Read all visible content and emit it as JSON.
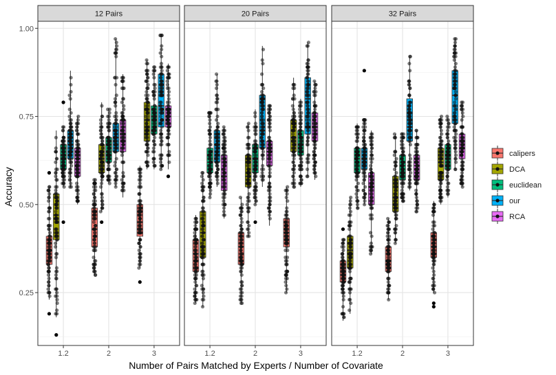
{
  "chart_data": {
    "type": "boxplot",
    "title": "",
    "xlabel": "Number of Pairs Matched by Experts / Number of Covariate",
    "ylabel": "Accuracy",
    "ylim": [
      0.1,
      1.02
    ],
    "yticks": [
      0.25,
      0.5,
      0.75,
      1.0
    ],
    "ytick_labels": [
      "0.25",
      "0.50",
      "0.75",
      "1.00"
    ],
    "categories": [
      "1.2",
      "2",
      "3"
    ],
    "grid": true,
    "legend_position": "right",
    "colors": {
      "calipers": "#F8766D",
      "DCA": "#A3A500",
      "euclidean": "#00BF7D",
      "our": "#00B0F6",
      "RCA": "#E76BF3"
    },
    "series_names": [
      "calipers",
      "DCA",
      "euclidean",
      "our",
      "RCA"
    ],
    "panels": [
      {
        "title": "12 Pairs",
        "groups": [
          {
            "category": "1.2",
            "boxes": [
              {
                "series": "calipers",
                "min": 0.23,
                "q1": 0.33,
                "median": 0.37,
                "q3": 0.41,
                "max": 0.55,
                "outliers": [
                  0.19,
                  0.59
                ]
              },
              {
                "series": "DCA",
                "min": 0.18,
                "q1": 0.4,
                "median": 0.47,
                "q3": 0.53,
                "max": 0.71,
                "outliers": [
                  0.13
                ]
              },
              {
                "series": "euclidean",
                "min": 0.55,
                "q1": 0.6,
                "median": 0.64,
                "q3": 0.67,
                "max": 0.72,
                "outliers": [
                  0.45,
                  0.79
                ]
              },
              {
                "series": "our",
                "min": 0.55,
                "q1": 0.63,
                "median": 0.67,
                "q3": 0.71,
                "max": 0.88,
                "outliers": []
              },
              {
                "series": "RCA",
                "min": 0.5,
                "q1": 0.58,
                "median": 0.63,
                "q3": 0.66,
                "max": 0.75,
                "outliers": []
              }
            ]
          },
          {
            "category": "2",
            "boxes": [
              {
                "series": "calipers",
                "min": 0.3,
                "q1": 0.38,
                "median": 0.43,
                "q3": 0.49,
                "max": 0.57,
                "outliers": []
              },
              {
                "series": "DCA",
                "min": 0.48,
                "q1": 0.59,
                "median": 0.63,
                "q3": 0.67,
                "max": 0.79,
                "outliers": [
                  0.45
                ]
              },
              {
                "series": "euclidean",
                "min": 0.56,
                "q1": 0.62,
                "median": 0.67,
                "q3": 0.69,
                "max": 0.77,
                "outliers": []
              },
              {
                "series": "our",
                "min": 0.55,
                "q1": 0.65,
                "median": 0.69,
                "q3": 0.73,
                "max": 0.97,
                "outliers": []
              },
              {
                "series": "RCA",
                "min": 0.52,
                "q1": 0.65,
                "median": 0.7,
                "q3": 0.74,
                "max": 0.87,
                "outliers": []
              }
            ]
          },
          {
            "category": "3",
            "boxes": [
              {
                "series": "calipers",
                "min": 0.32,
                "q1": 0.41,
                "median": 0.45,
                "q3": 0.5,
                "max": 0.61,
                "outliers": [
                  0.28
                ]
              },
              {
                "series": "DCA",
                "min": 0.6,
                "q1": 0.68,
                "median": 0.74,
                "q3": 0.79,
                "max": 0.91,
                "outliers": []
              },
              {
                "series": "euclidean",
                "min": 0.6,
                "q1": 0.7,
                "median": 0.75,
                "q3": 0.78,
                "max": 0.89,
                "outliers": []
              },
              {
                "series": "our",
                "min": 0.6,
                "q1": 0.72,
                "median": 0.78,
                "q3": 0.87,
                "max": 0.98,
                "outliers": []
              },
              {
                "series": "RCA",
                "min": 0.6,
                "q1": 0.72,
                "median": 0.75,
                "q3": 0.78,
                "max": 0.9,
                "outliers": [
                  0.58
                ]
              }
            ]
          }
        ]
      },
      {
        "title": "20 Pairs",
        "groups": [
          {
            "category": "1.2",
            "boxes": [
              {
                "series": "calipers",
                "min": 0.22,
                "q1": 0.31,
                "median": 0.36,
                "q3": 0.4,
                "max": 0.47,
                "outliers": []
              },
              {
                "series": "DCA",
                "min": 0.21,
                "q1": 0.35,
                "median": 0.42,
                "q3": 0.48,
                "max": 0.59,
                "outliers": []
              },
              {
                "series": "euclidean",
                "min": 0.52,
                "q1": 0.59,
                "median": 0.62,
                "q3": 0.66,
                "max": 0.76,
                "outliers": []
              },
              {
                "series": "our",
                "min": 0.55,
                "q1": 0.62,
                "median": 0.67,
                "q3": 0.71,
                "max": 0.87,
                "outliers": []
              },
              {
                "series": "RCA",
                "min": 0.46,
                "q1": 0.54,
                "median": 0.58,
                "q3": 0.64,
                "max": 0.72,
                "outliers": []
              }
            ]
          },
          {
            "category": "2",
            "boxes": [
              {
                "series": "calipers",
                "min": 0.22,
                "q1": 0.33,
                "median": 0.38,
                "q3": 0.42,
                "max": 0.52,
                "outliers": []
              },
              {
                "series": "DCA",
                "min": 0.41,
                "q1": 0.55,
                "median": 0.58,
                "q3": 0.64,
                "max": 0.73,
                "outliers": []
              },
              {
                "series": "euclidean",
                "min": 0.5,
                "q1": 0.59,
                "median": 0.63,
                "q3": 0.67,
                "max": 0.77,
                "outliers": [
                  0.45
                ]
              },
              {
                "series": "our",
                "min": 0.55,
                "q1": 0.66,
                "median": 0.71,
                "q3": 0.81,
                "max": 0.95,
                "outliers": []
              },
              {
                "series": "RCA",
                "min": 0.44,
                "q1": 0.61,
                "median": 0.65,
                "q3": 0.68,
                "max": 0.78,
                "outliers": []
              }
            ]
          },
          {
            "category": "3",
            "boxes": [
              {
                "series": "calipers",
                "min": 0.25,
                "q1": 0.38,
                "median": 0.42,
                "q3": 0.46,
                "max": 0.55,
                "outliers": []
              },
              {
                "series": "DCA",
                "min": 0.55,
                "q1": 0.65,
                "median": 0.69,
                "q3": 0.74,
                "max": 0.86,
                "outliers": []
              },
              {
                "series": "euclidean",
                "min": 0.55,
                "q1": 0.64,
                "median": 0.67,
                "q3": 0.71,
                "max": 0.8,
                "outliers": []
              },
              {
                "series": "our",
                "min": 0.58,
                "q1": 0.7,
                "median": 0.8,
                "q3": 0.86,
                "max": 0.96,
                "outliers": []
              },
              {
                "series": "RCA",
                "min": 0.57,
                "q1": 0.68,
                "median": 0.72,
                "q3": 0.76,
                "max": 0.85,
                "outliers": []
              }
            ]
          }
        ]
      },
      {
        "title": "32 Pairs",
        "groups": [
          {
            "category": "1.2",
            "boxes": [
              {
                "series": "calipers",
                "min": 0.17,
                "q1": 0.28,
                "median": 0.3,
                "q3": 0.34,
                "max": 0.4,
                "outliers": [
                  0.43
                ]
              },
              {
                "series": "DCA",
                "min": 0.19,
                "q1": 0.32,
                "median": 0.37,
                "q3": 0.41,
                "max": 0.52,
                "outliers": []
              },
              {
                "series": "euclidean",
                "min": 0.49,
                "q1": 0.59,
                "median": 0.63,
                "q3": 0.66,
                "max": 0.73,
                "outliers": []
              },
              {
                "series": "our",
                "min": 0.5,
                "q1": 0.6,
                "median": 0.63,
                "q3": 0.66,
                "max": 0.74,
                "outliers": [
                  0.88
                ]
              },
              {
                "series": "RCA",
                "min": 0.36,
                "q1": 0.5,
                "median": 0.55,
                "q3": 0.59,
                "max": 0.71,
                "outliers": []
              }
            ]
          },
          {
            "category": "2",
            "boxes": [
              {
                "series": "calipers",
                "min": 0.23,
                "q1": 0.31,
                "median": 0.34,
                "q3": 0.38,
                "max": 0.46,
                "outliers": []
              },
              {
                "series": "DCA",
                "min": 0.39,
                "q1": 0.48,
                "median": 0.52,
                "q3": 0.58,
                "max": 0.7,
                "outliers": []
              },
              {
                "series": "euclidean",
                "min": 0.51,
                "q1": 0.57,
                "median": 0.61,
                "q3": 0.64,
                "max": 0.7,
                "outliers": []
              },
              {
                "series": "our",
                "min": 0.54,
                "q1": 0.68,
                "median": 0.72,
                "q3": 0.8,
                "max": 0.92,
                "outliers": []
              },
              {
                "series": "RCA",
                "min": 0.48,
                "q1": 0.57,
                "median": 0.61,
                "q3": 0.64,
                "max": 0.71,
                "outliers": []
              }
            ]
          },
          {
            "category": "3",
            "boxes": [
              {
                "series": "calipers",
                "min": 0.25,
                "q1": 0.35,
                "median": 0.38,
                "q3": 0.42,
                "max": 0.51,
                "outliers": [
                  0.21,
                  0.22
                ]
              },
              {
                "series": "DCA",
                "min": 0.5,
                "q1": 0.57,
                "median": 0.62,
                "q3": 0.66,
                "max": 0.75,
                "outliers": []
              },
              {
                "series": "euclidean",
                "min": 0.52,
                "q1": 0.6,
                "median": 0.63,
                "q3": 0.67,
                "max": 0.75,
                "outliers": []
              },
              {
                "series": "our",
                "min": 0.6,
                "q1": 0.73,
                "median": 0.81,
                "q3": 0.88,
                "max": 0.97,
                "outliers": []
              },
              {
                "series": "RCA",
                "min": 0.55,
                "q1": 0.63,
                "median": 0.66,
                "q3": 0.7,
                "max": 0.79,
                "outliers": []
              }
            ]
          }
        ]
      }
    ]
  }
}
